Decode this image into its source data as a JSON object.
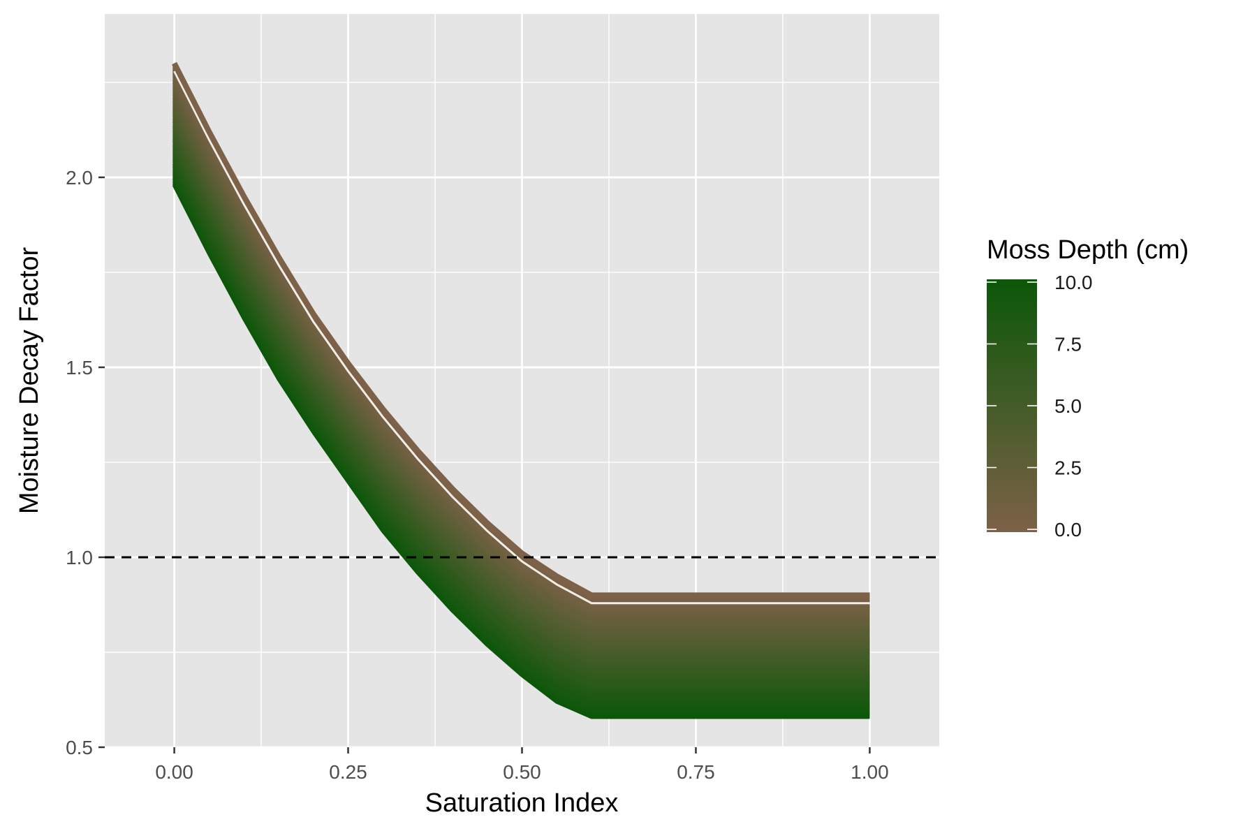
{
  "chart_data": {
    "type": "line",
    "title": "",
    "xlabel": "Saturation Index",
    "ylabel": "Moisture Decay Factor",
    "xlim": [
      -0.1,
      1.1
    ],
    "ylim": [
      0.5,
      2.43
    ],
    "x_ticks": [
      0,
      0.25,
      0.5,
      0.75,
      1
    ],
    "x_tick_labels": [
      "0.00",
      "0.25",
      "0.50",
      "0.75",
      "1.00"
    ],
    "y_ticks": [
      0.5,
      1.0,
      1.5,
      2.0
    ],
    "y_tick_labels": [
      "0.5",
      "1.0",
      "1.5",
      "2.0"
    ],
    "grid": true,
    "x": [
      0,
      0.05,
      0.1,
      0.15,
      0.2,
      0.25,
      0.3,
      0.35,
      0.4,
      0.45,
      0.5,
      0.55,
      0.6,
      1.0
    ],
    "series": [
      {
        "moss_depth": 0,
        "values": [
          2.3,
          2.12,
          1.95,
          1.79,
          1.64,
          1.51,
          1.39,
          1.28,
          1.18,
          1.09,
          1.01,
          0.95,
          0.9,
          0.9
        ]
      },
      {
        "moss_depth": 10,
        "values": [
          1.98,
          1.8,
          1.63,
          1.47,
          1.33,
          1.2,
          1.07,
          0.96,
          0.86,
          0.77,
          0.69,
          0.62,
          0.58,
          0.58
        ]
      }
    ],
    "reference_line": {
      "y": 1.0,
      "style": "dashed",
      "color": "#000000"
    },
    "legend": {
      "title": "Moss Depth (cm)",
      "placement": "right",
      "type": "colorbar",
      "range": [
        0,
        10
      ],
      "ticks": [
        0,
        2.5,
        5,
        7.5,
        10
      ],
      "tick_labels": [
        "0.0",
        "2.5",
        "5.0",
        "7.5",
        "10.0"
      ],
      "low_color": "#7d6148",
      "high_color": "#0b5708"
    },
    "panel_background": "#e5e5e5",
    "grid_color": "#ffffff"
  }
}
